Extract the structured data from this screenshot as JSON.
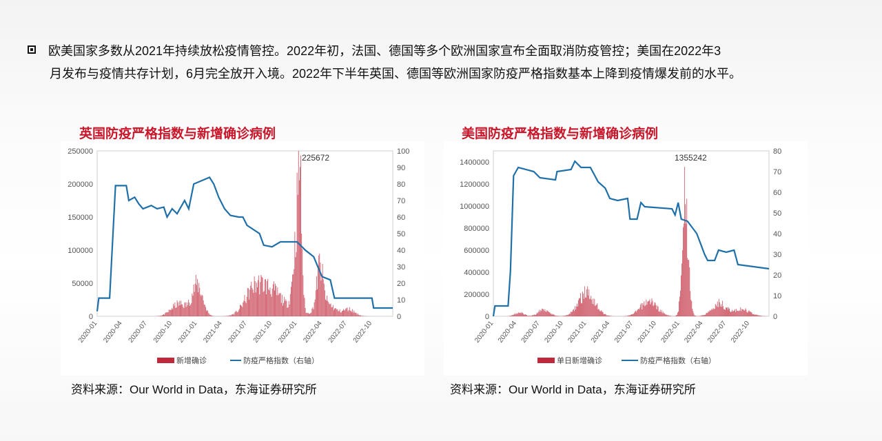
{
  "intro": {
    "line1": "欧美国家多数从2021年持续放松疫情管控。2022年初，法国、德国等多个欧洲国家宣布全面取消防疫管控；美国在2022年3",
    "line2": "月发布与疫情共存计划，6月完全放开入境。2022年下半年英国、德国等欧洲国家防疫严格指数基本上降到疫情爆发前的水平。"
  },
  "source_text": "资料来源：Our World in Data，东海证券研究所",
  "colors": {
    "bar": "#c0283b",
    "line": "#1f6fa8",
    "title": "#c8172b"
  },
  "chart_data": [
    {
      "type": "bar+line",
      "title": "英国防疫严格指数与新增确诊病例",
      "peak_annotation": "225672",
      "x_ticks": [
        "2020-01",
        "2020-04",
        "2020-07",
        "2020-10",
        "2021-01",
        "2021-04",
        "2021-07",
        "2021-10",
        "2022-01",
        "2022-04",
        "2022-07",
        "2022-10"
      ],
      "xlim": [
        "2020-01",
        "2022-12"
      ],
      "left_axis": {
        "min": 0,
        "max": 250000,
        "ticks": [
          "0",
          "50000",
          "100000",
          "150000",
          "200000",
          "250000"
        ]
      },
      "right_axis": {
        "min": 0,
        "max": 100,
        "ticks": [
          "0",
          "10",
          "20",
          "30",
          "40",
          "50",
          "60",
          "70",
          "80",
          "90",
          "100"
        ]
      },
      "legend": [
        "新增确诊",
        "防疫严格指数（右轴）"
      ],
      "cases_peaks": [
        {
          "t": 9.8,
          "v": 22000,
          "w": 1.3
        },
        {
          "t": 12.0,
          "v": 55000,
          "w": 0.9
        },
        {
          "t": 18.8,
          "v": 42000,
          "w": 1.6
        },
        {
          "t": 21.0,
          "v": 42000,
          "w": 2.0
        },
        {
          "t": 23.9,
          "v": 120000,
          "w": 0.6
        },
        {
          "t": 24.3,
          "v": 185000,
          "w": 0.35
        },
        {
          "t": 26.7,
          "v": 70000,
          "w": 0.5
        },
        {
          "t": 27.3,
          "v": 25000,
          "w": 1.5
        },
        {
          "t": 30.2,
          "v": 12000,
          "w": 1.0
        }
      ],
      "cases_peak_value": {
        "t": 24.3,
        "v": 225672
      },
      "stringency": [
        [
          0,
          3
        ],
        [
          0.2,
          11
        ],
        [
          1.5,
          11
        ],
        [
          2.2,
          79
        ],
        [
          3.5,
          79
        ],
        [
          3.8,
          70
        ],
        [
          4.5,
          72
        ],
        [
          5,
          68
        ],
        [
          5.5,
          65
        ],
        [
          6.5,
          67
        ],
        [
          7.2,
          65
        ],
        [
          8,
          66
        ],
        [
          8.4,
          60
        ],
        [
          9,
          65
        ],
        [
          9.6,
          62
        ],
        [
          10.5,
          70
        ],
        [
          11,
          65
        ],
        [
          11.6,
          80
        ],
        [
          13.5,
          84
        ],
        [
          14,
          80
        ],
        [
          14.6,
          72
        ],
        [
          15.3,
          65
        ],
        [
          16,
          61
        ],
        [
          17,
          60
        ],
        [
          17.5,
          60
        ],
        [
          18,
          55
        ],
        [
          19.5,
          50
        ],
        [
          20,
          43
        ],
        [
          21,
          42
        ],
        [
          22,
          45
        ],
        [
          24,
          45
        ],
        [
          24.6,
          42
        ],
        [
          25,
          40
        ],
        [
          26,
          36
        ],
        [
          27,
          24
        ],
        [
          28,
          22
        ],
        [
          28.5,
          11
        ],
        [
          29,
          11
        ],
        [
          33,
          11
        ],
        [
          33.2,
          5
        ],
        [
          35.5,
          5
        ]
      ]
    },
    {
      "type": "bar+line",
      "title": "美国防疫严格指数与新增确诊病例",
      "peak_annotation": "1355242",
      "x_ticks": [
        "2020-01",
        "2020-04",
        "2020-07",
        "2020-10",
        "2021-01",
        "2021-04",
        "2021-07",
        "2021-10",
        "2022-01",
        "2022-04",
        "2022-07",
        "2022-10"
      ],
      "xlim": [
        "2020-01",
        "2022-12"
      ],
      "left_axis": {
        "min": 0,
        "max": 1500000,
        "ticks": [
          "0",
          "200000",
          "400000",
          "600000",
          "800000",
          "1000000",
          "1200000",
          "1400000"
        ]
      },
      "right_axis": {
        "min": 0,
        "max": 80,
        "ticks": [
          "0",
          "10",
          "20",
          "30",
          "40",
          "50",
          "60",
          "70",
          "80"
        ]
      },
      "legend": [
        "单日新增确诊",
        "防疫严格指数（右轴）"
      ],
      "cases_peaks": [
        {
          "t": 3.3,
          "v": 40000,
          "w": 0.8
        },
        {
          "t": 6.5,
          "v": 75000,
          "w": 1.0
        },
        {
          "t": 12.0,
          "v": 250000,
          "w": 1.5
        },
        {
          "t": 20.0,
          "v": 160000,
          "w": 1.5
        },
        {
          "t": 24.5,
          "v": 850000,
          "w": 0.45
        },
        {
          "t": 24.9,
          "v": 600000,
          "w": 0.5
        },
        {
          "t": 29.0,
          "v": 140000,
          "w": 1.3
        },
        {
          "t": 32.0,
          "v": 70000,
          "w": 1.5
        }
      ],
      "cases_peak_value": {
        "t": 24.6,
        "v": 1355242
      },
      "stringency": [
        [
          0,
          0
        ],
        [
          0.2,
          5
        ],
        [
          1.9,
          5
        ],
        [
          2.2,
          22
        ],
        [
          2.6,
          68
        ],
        [
          3.2,
          72
        ],
        [
          5.2,
          70
        ],
        [
          6,
          67
        ],
        [
          8,
          66
        ],
        [
          8.2,
          70
        ],
        [
          10,
          71
        ],
        [
          10.5,
          75
        ],
        [
          11.3,
          72
        ],
        [
          12.5,
          72
        ],
        [
          13.5,
          65
        ],
        [
          14.4,
          62
        ],
        [
          15,
          57
        ],
        [
          16,
          56
        ],
        [
          17.3,
          57
        ],
        [
          17.6,
          47
        ],
        [
          18.5,
          47
        ],
        [
          19,
          55
        ],
        [
          19.5,
          53
        ],
        [
          23,
          52
        ],
        [
          23.4,
          49
        ],
        [
          23.8,
          55
        ],
        [
          24.2,
          47
        ],
        [
          25,
          46
        ],
        [
          26.2,
          40
        ],
        [
          27.2,
          30
        ],
        [
          27.6,
          27
        ],
        [
          28.5,
          27
        ],
        [
          29,
          32
        ],
        [
          30,
          31
        ],
        [
          31,
          32
        ],
        [
          31.5,
          25
        ],
        [
          35.5,
          23
        ]
      ]
    }
  ]
}
